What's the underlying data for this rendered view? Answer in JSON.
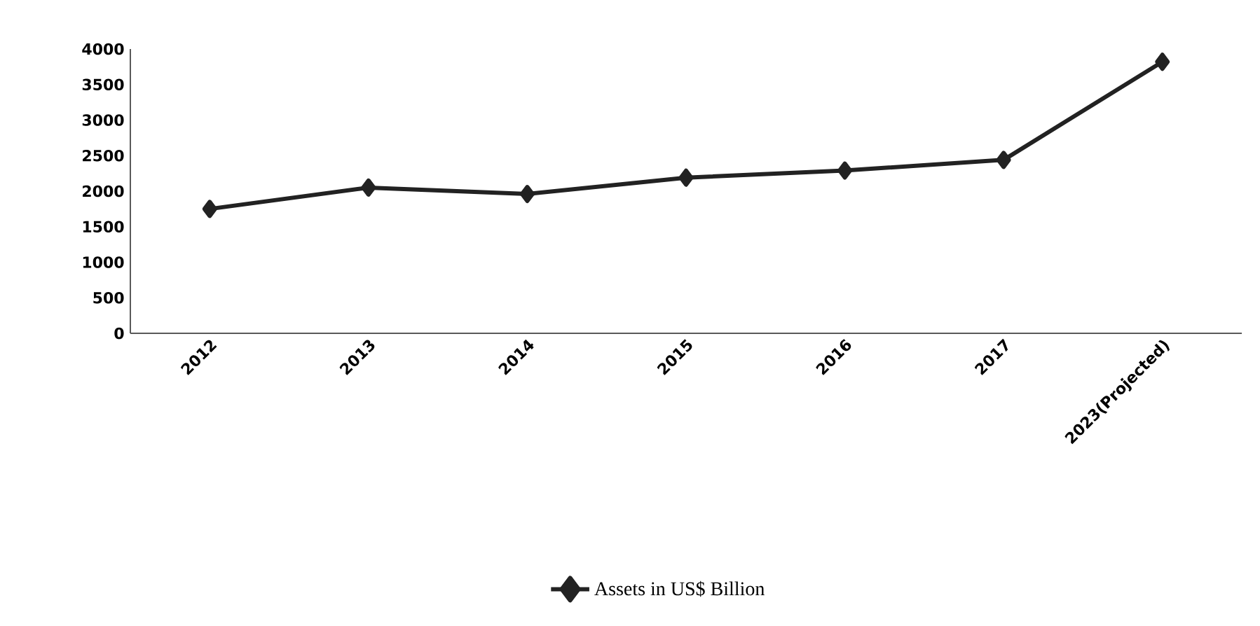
{
  "chart_data": {
    "type": "line",
    "categories": [
      "2012",
      "2013",
      "2014",
      "2015",
      "2016",
      "2017",
      "2023(Projected)"
    ],
    "series": [
      {
        "name": "Assets in US$ Billion",
        "color": "#222222",
        "values": [
          1750,
          2050,
          1960,
          2190,
          2290,
          2440,
          3820
        ]
      }
    ],
    "ylim": [
      0,
      4000
    ],
    "yticks": [
      0,
      500,
      1000,
      1500,
      2000,
      2500,
      3000,
      3500,
      4000
    ],
    "marker": "diamond",
    "line_style": "solid",
    "legend": "bottom"
  }
}
